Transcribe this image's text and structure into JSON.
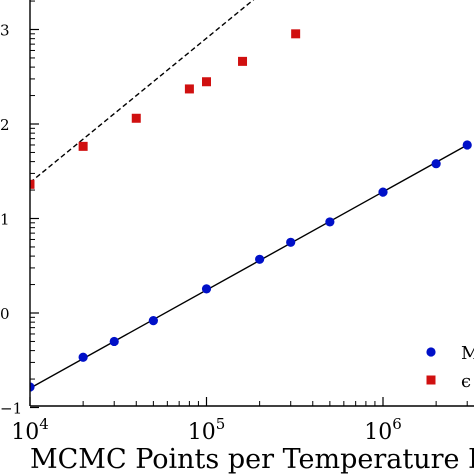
{
  "chart_data": {
    "type": "scatter",
    "title": "",
    "xlabel": "MCMC Points per Temperature R",
    "ylabel": "",
    "xscale": "log",
    "yscale": "log",
    "xlim": [
      10000,
      3000000
    ],
    "ylim": [
      0.1,
      10000
    ],
    "x_ticks": [
      {
        "value": 10000,
        "base": "10",
        "exp": "4"
      },
      {
        "value": 100000,
        "base": "10",
        "exp": "5"
      },
      {
        "value": 1000000,
        "base": "10",
        "exp": "6"
      }
    ],
    "y_ticks": [
      {
        "value": 0.1,
        "base": "",
        "exp": "−1"
      },
      {
        "value": 1,
        "base": "",
        "exp": "0"
      },
      {
        "value": 10,
        "base": "",
        "exp": "1"
      },
      {
        "value": 100,
        "base": "",
        "exp": "2"
      },
      {
        "value": 1000,
        "base": "",
        "exp": "3"
      }
    ],
    "grid": false,
    "legend_position": "bottom-right",
    "series": [
      {
        "name": "M",
        "color": "#0010c8",
        "marker": "circle",
        "fit_line_style": "solid",
        "fit_line": {
          "x": [
            10000,
            3000000
          ],
          "y": [
            0.16,
            60
          ]
        },
        "points": [
          {
            "x": 10000,
            "y": 0.165
          },
          {
            "x": 20000,
            "y": 0.34
          },
          {
            "x": 30000,
            "y": 0.5
          },
          {
            "x": 50000,
            "y": 0.83
          },
          {
            "x": 100000,
            "y": 1.8
          },
          {
            "x": 200000,
            "y": 3.7
          },
          {
            "x": 300000,
            "y": 5.6
          },
          {
            "x": 500000,
            "y": 9.2
          },
          {
            "x": 1000000,
            "y": 19
          },
          {
            "x": 2000000,
            "y": 38
          },
          {
            "x": 3000000,
            "y": 60
          }
        ]
      },
      {
        "name": "ϵ",
        "color": "#d01010",
        "marker": "square",
        "fit_line_style": "dashed",
        "fit_line": {
          "x": [
            10000,
            600000
          ],
          "y": [
            24,
            12500
          ]
        },
        "points": [
          {
            "x": 10000,
            "y": 23
          },
          {
            "x": 20000,
            "y": 58
          },
          {
            "x": 40000,
            "y": 115
          },
          {
            "x": 80000,
            "y": 235
          },
          {
            "x": 100000,
            "y": 280
          },
          {
            "x": 160000,
            "y": 460
          },
          {
            "x": 320000,
            "y": 900
          }
        ]
      }
    ]
  }
}
